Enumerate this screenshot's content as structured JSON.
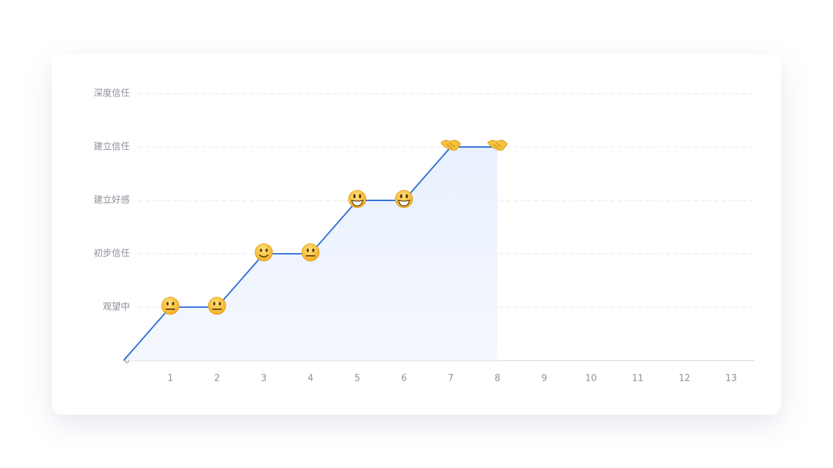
{
  "chart_data": {
    "type": "line",
    "x": [
      0,
      1,
      2,
      3,
      4,
      5,
      6,
      7,
      8
    ],
    "series": [
      {
        "color": "#2f6fd6",
        "values": [
          0,
          1,
          1,
          2,
          2,
          3,
          3,
          4,
          4
        ]
      }
    ],
    "xlim": [
      0,
      13.5
    ],
    "xticks": [
      1,
      2,
      3,
      4,
      5,
      6,
      7,
      8,
      9,
      10,
      11,
      12,
      13
    ],
    "ylim": [
      0,
      5
    ],
    "yticks": [
      0,
      {
        "value": 1,
        "label": "观望中"
      },
      {
        "value": 2,
        "label": "初步信任"
      },
      {
        "value": 3,
        "label": "建立好感"
      },
      {
        "value": 4,
        "label": "建立信任"
      },
      {
        "value": 5,
        "label": "深度信任"
      }
    ],
    "grid": true
  }
}
